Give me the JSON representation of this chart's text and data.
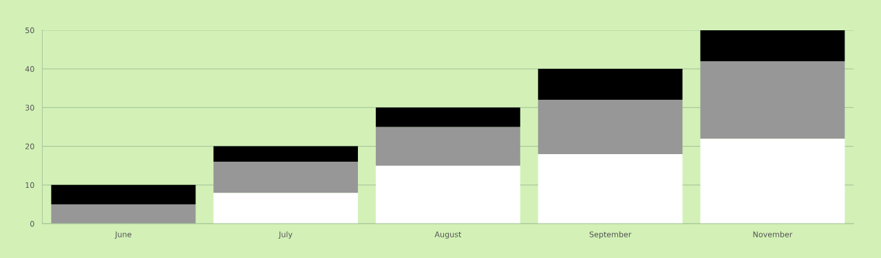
{
  "chart_data": {
    "type": "bar",
    "stacked": true,
    "categories": [
      "June",
      "July",
      "August",
      "September",
      "November"
    ],
    "series": [
      {
        "color": "#ffffff",
        "values": [
          0,
          8,
          15,
          18,
          22
        ]
      },
      {
        "color": "#979797",
        "values": [
          5,
          8,
          10,
          14,
          20
        ]
      },
      {
        "color": "#000000",
        "values": [
          5,
          4,
          5,
          8,
          8
        ]
      }
    ],
    "ylim": [
      0,
      50
    ],
    "yticks": [
      0,
      10,
      20,
      30,
      40,
      50
    ],
    "grid": "y"
  }
}
